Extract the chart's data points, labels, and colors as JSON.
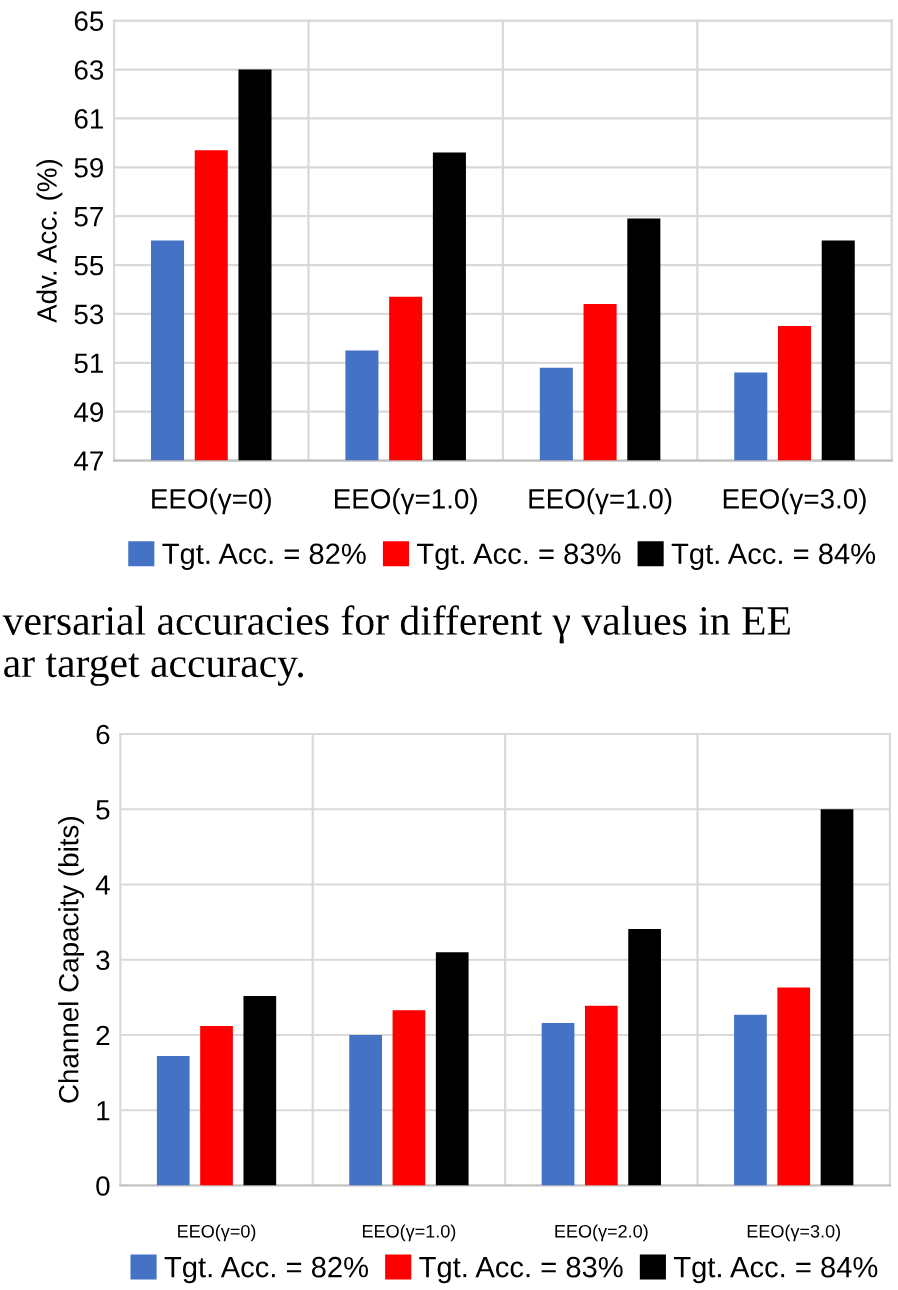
{
  "chart_data": [
    {
      "type": "bar",
      "ylabel": "Adv. Acc. (%)",
      "categories": [
        "EEO(γ=0)",
        "EEO(γ=1.0)",
        "EEO(γ=1.0)",
        "EEO(γ=3.0)"
      ],
      "series": [
        {
          "name": "Tgt. Acc. = 82%",
          "color": "#4472c4",
          "values": [
            56.0,
            51.5,
            50.8,
            50.6
          ]
        },
        {
          "name": "Tgt. Acc. = 83%",
          "color": "#ff0000",
          "values": [
            59.7,
            53.7,
            53.4,
            52.5
          ]
        },
        {
          "name": "Tgt. Acc. = 84%",
          "color": "#000000",
          "values": [
            63.0,
            59.6,
            56.9,
            56.0
          ]
        }
      ],
      "ylim": [
        47,
        65
      ],
      "yticks": [
        47,
        49,
        51,
        53,
        55,
        57,
        59,
        61,
        63,
        65
      ],
      "grid": true,
      "legend": "bottom",
      "annotations": [
        "versarial accuracies for different γ values in EE",
        "ar target accuracy."
      ]
    },
    {
      "type": "bar",
      "ylabel": "Channel Capacity (bits)",
      "categories": [
        "EEO(γ=0)",
        "EEO(γ=1.0)",
        "EEO(γ=2.0)",
        "EEO(γ=3.0)"
      ],
      "series": [
        {
          "name": "Tgt. Acc. = 82%",
          "color": "#4472c4",
          "values": [
            1.72,
            2.0,
            2.16,
            2.27
          ]
        },
        {
          "name": "Tgt. Acc. = 83%",
          "color": "#ff0000",
          "values": [
            2.12,
            2.33,
            2.39,
            2.63
          ]
        },
        {
          "name": "Tgt. Acc. = 84%",
          "color": "#000000",
          "values": [
            2.52,
            3.1,
            3.41,
            5.0
          ]
        }
      ],
      "ylim": [
        0,
        6
      ],
      "yticks": [
        0,
        1,
        2,
        3,
        4,
        5,
        6
      ],
      "grid": true,
      "legend": "bottom"
    }
  ]
}
